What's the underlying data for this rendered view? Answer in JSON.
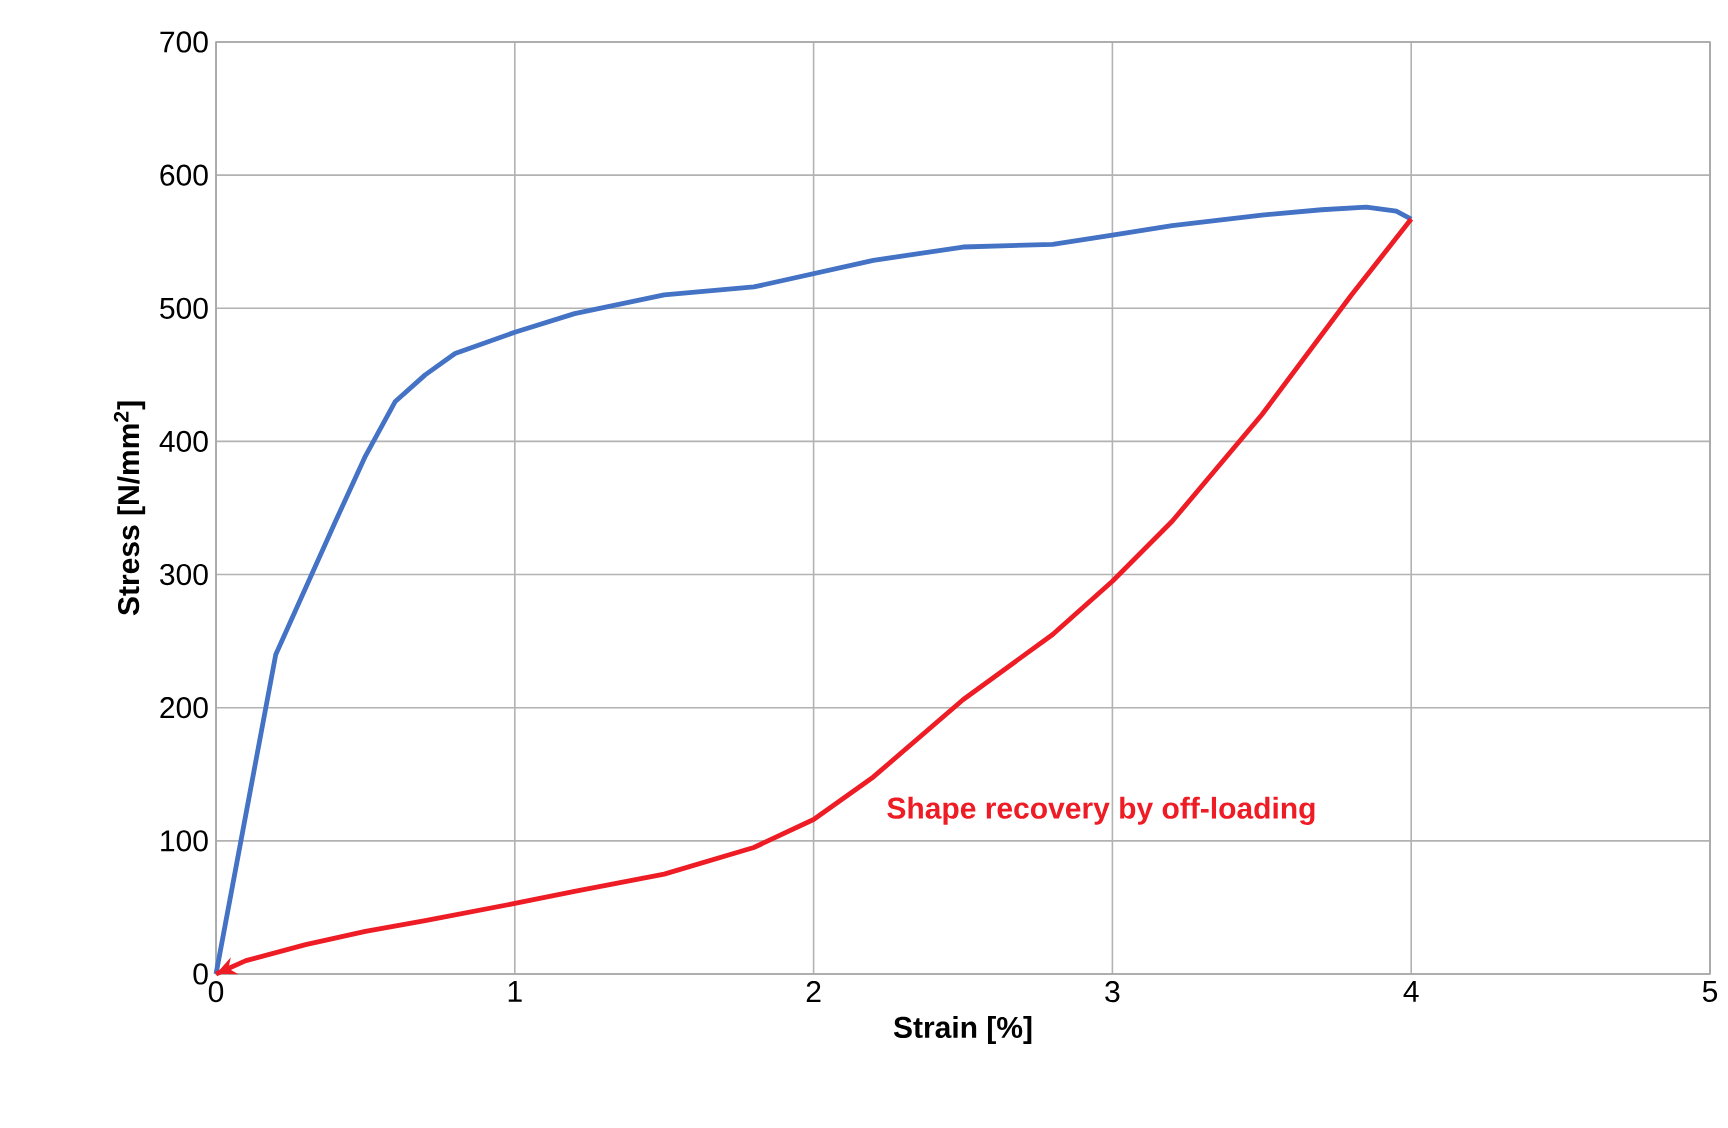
{
  "chart_data": {
    "type": "line",
    "xlabel": "Strain [%]",
    "ylabel": "Stress [N/mm$^{2}$]",
    "xlim": [
      0,
      5
    ],
    "ylim": [
      0,
      700
    ],
    "xticks": [
      0,
      1,
      2,
      3,
      4,
      5
    ],
    "yticks": [
      0,
      100,
      200,
      300,
      400,
      500,
      600,
      700
    ],
    "grid": true,
    "marker": "none",
    "line_style": "solid",
    "series": [
      {
        "color": "#4472c4",
        "x": [
          0,
          0.1,
          0.2,
          0.3,
          0.4,
          0.5,
          0.6,
          0.7,
          0.8,
          1,
          1.2,
          1.5,
          1.8,
          2,
          2.2,
          2.5,
          2.8,
          3,
          3.2,
          3.5,
          3.7,
          3.85,
          3.95,
          4
        ],
        "values": [
          0,
          120,
          240,
          290,
          340,
          389,
          430,
          450,
          466,
          482,
          496,
          510,
          516,
          526,
          536,
          546,
          548,
          555,
          562,
          570,
          574,
          576,
          573,
          567
        ]
      },
      {
        "color": "#ee1c25",
        "x": [
          4,
          3.8,
          3.5,
          3.2,
          3,
          2.8,
          2.5,
          2.2,
          2,
          1.8,
          1.5,
          1.2,
          1,
          0.7,
          0.5,
          0.3,
          0.1,
          0
        ],
        "values": [
          567,
          510,
          420,
          340,
          295,
          255,
          206,
          148,
          116,
          95,
          75,
          62,
          53,
          40,
          32,
          22,
          10,
          0
        ]
      }
    ],
    "annotations": [
      "Shape recovery by off-loading"
    ]
  }
}
